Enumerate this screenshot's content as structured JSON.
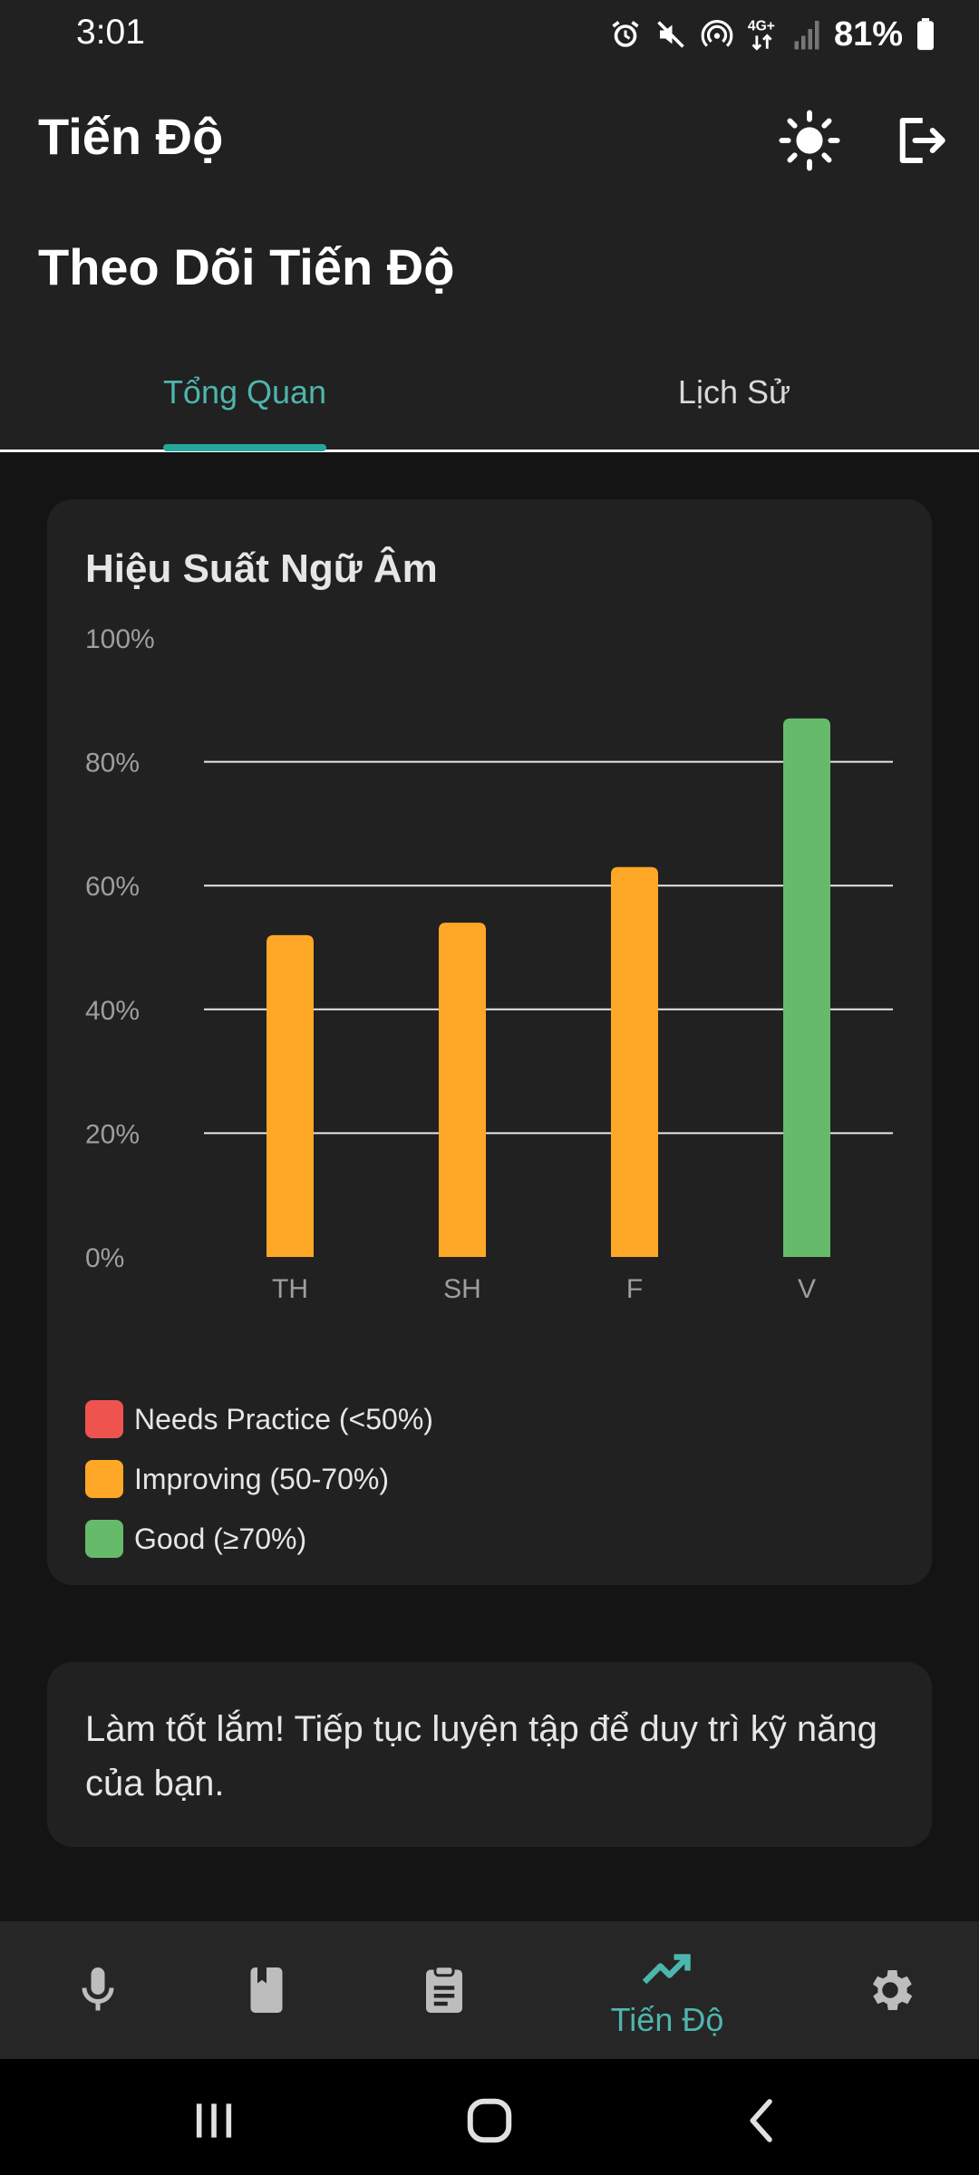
{
  "status_bar": {
    "time": "3:01",
    "battery": "81%",
    "icons": [
      "alarm-icon",
      "mute-icon",
      "hotspot-icon",
      "network-4g-icon",
      "signal-icon",
      "battery-icon"
    ]
  },
  "app_bar": {
    "title": "Tiến Độ",
    "actions": [
      "theme-sun-icon",
      "logout-icon"
    ]
  },
  "page": {
    "heading": "Theo Dõi Tiến Độ"
  },
  "tabs": [
    {
      "label": "Tổng Quan",
      "active": true
    },
    {
      "label": "Lịch Sử",
      "active": false
    }
  ],
  "chart_card": {
    "title": "Hiệu Suất Ngữ Âm"
  },
  "chart_data": {
    "type": "bar",
    "title": "Hiệu Suất Ngữ Âm",
    "categories": [
      "TH",
      "SH",
      "F",
      "V"
    ],
    "values": [
      52,
      54,
      63,
      87
    ],
    "colors": [
      "#ffa726",
      "#ffa726",
      "#ffa726",
      "#66bb6a"
    ],
    "ylim": [
      0,
      100
    ],
    "yticks": [
      "0%",
      "20%",
      "40%",
      "60%",
      "80%",
      "100%"
    ],
    "gridlines": [
      20,
      40,
      60,
      80
    ]
  },
  "legend": [
    {
      "label": "Needs Practice (<50%)",
      "color": "#ef5350"
    },
    {
      "label": "Improving (50-70%)",
      "color": "#ffa726"
    },
    {
      "label": "Good (≥70%)",
      "color": "#66bb6a"
    }
  ],
  "message": {
    "text": "Làm tốt lắm! Tiếp tục luyện tập để duy trì kỹ năng của bạn."
  },
  "bottom_nav": {
    "items": [
      {
        "icon": "microphone-icon",
        "label": ""
      },
      {
        "icon": "book-icon",
        "label": ""
      },
      {
        "icon": "clipboard-icon",
        "label": ""
      },
      {
        "icon": "trending-up-icon",
        "label": "Tiến Độ",
        "active": true
      },
      {
        "icon": "settings-gear-icon",
        "label": ""
      }
    ]
  },
  "colors": {
    "accent": "#4db6ac",
    "card": "#212121",
    "background": "#141414"
  }
}
